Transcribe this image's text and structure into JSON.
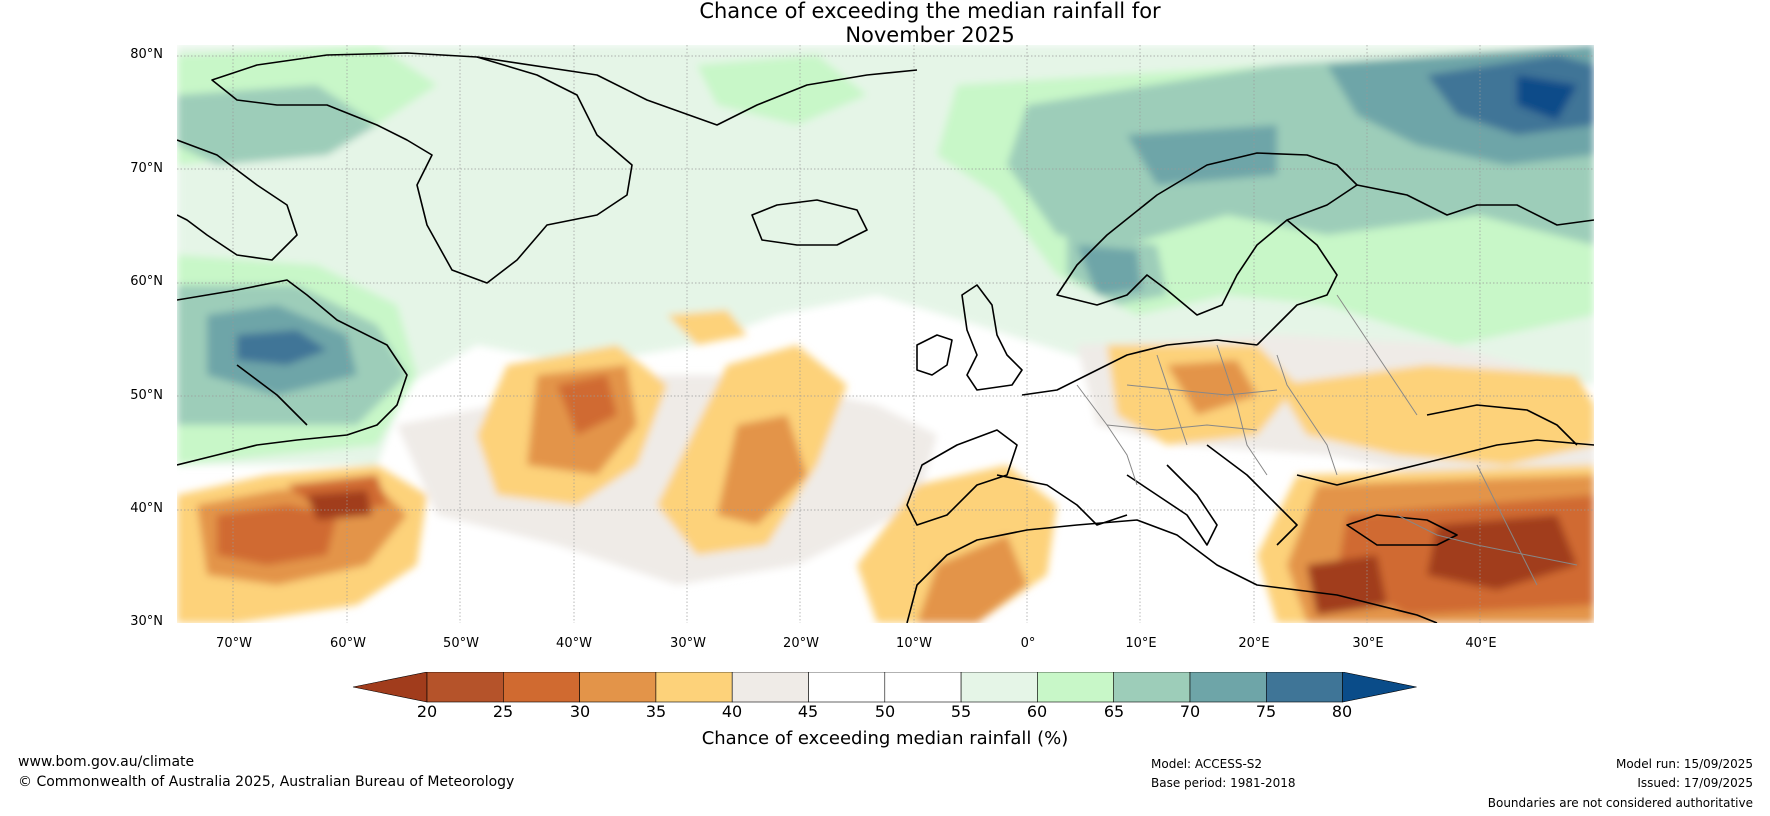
{
  "title": {
    "line1": "Chance of exceeding the median rainfall for",
    "line2": "November 2025"
  },
  "map": {
    "lat_labels": [
      "80°N",
      "70°N",
      "60°N",
      "50°N",
      "40°N",
      "30°N"
    ],
    "lon_labels": [
      "70°W",
      "60°W",
      "50°W",
      "40°W",
      "30°W",
      "20°W",
      "10°W",
      "0°",
      "10°E",
      "20°E",
      "30°E",
      "40°E"
    ],
    "extent": {
      "lon_min": -75,
      "lon_max": 50,
      "lat_min": 30,
      "lat_max": 81
    },
    "colors": {
      "dry_strong": "#a13c1c",
      "dry_moderate": "#cf6a2c",
      "dry_light": "#f1a945",
      "dry_slight": "#fdd27a",
      "near_dry": "#efebe7",
      "neutral": "#ffffff",
      "wet_slight": "#e5f5e7",
      "wet_light": "#c8f7c8",
      "wet_moderate": "#9dcdb9",
      "wet_strong": "#6ea5a8",
      "wet_very": "#3f7597",
      "wet_extreme": "#0a4c89"
    }
  },
  "colorbar": {
    "label": "Chance of exceeding median rainfall (%)",
    "ticks": [
      "20",
      "25",
      "30",
      "35",
      "40",
      "45",
      "50",
      "55",
      "60",
      "65",
      "70",
      "75",
      "80"
    ],
    "colors": [
      "#a13c1c",
      "#b5532a",
      "#d06a30",
      "#e39449",
      "#fdd27a",
      "#efebe7",
      "#ffffff",
      "#ffffff",
      "#e5f5e7",
      "#c8f7c8",
      "#9dcdb9",
      "#6ea5a8",
      "#3f7597",
      "#0a4c89"
    ]
  },
  "footer": {
    "website": "www.bom.gov.au/climate",
    "copyright": "© Commonwealth of Australia 2025, Australian Bureau of Meteorology",
    "model": "Model: ACCESS-S2",
    "base_period": "Base period: 1981-2018",
    "model_run": "Model run: 15/09/2025",
    "issued": "Issued: 17/09/2025",
    "disclaimer": "Boundaries are not considered authoritative"
  }
}
